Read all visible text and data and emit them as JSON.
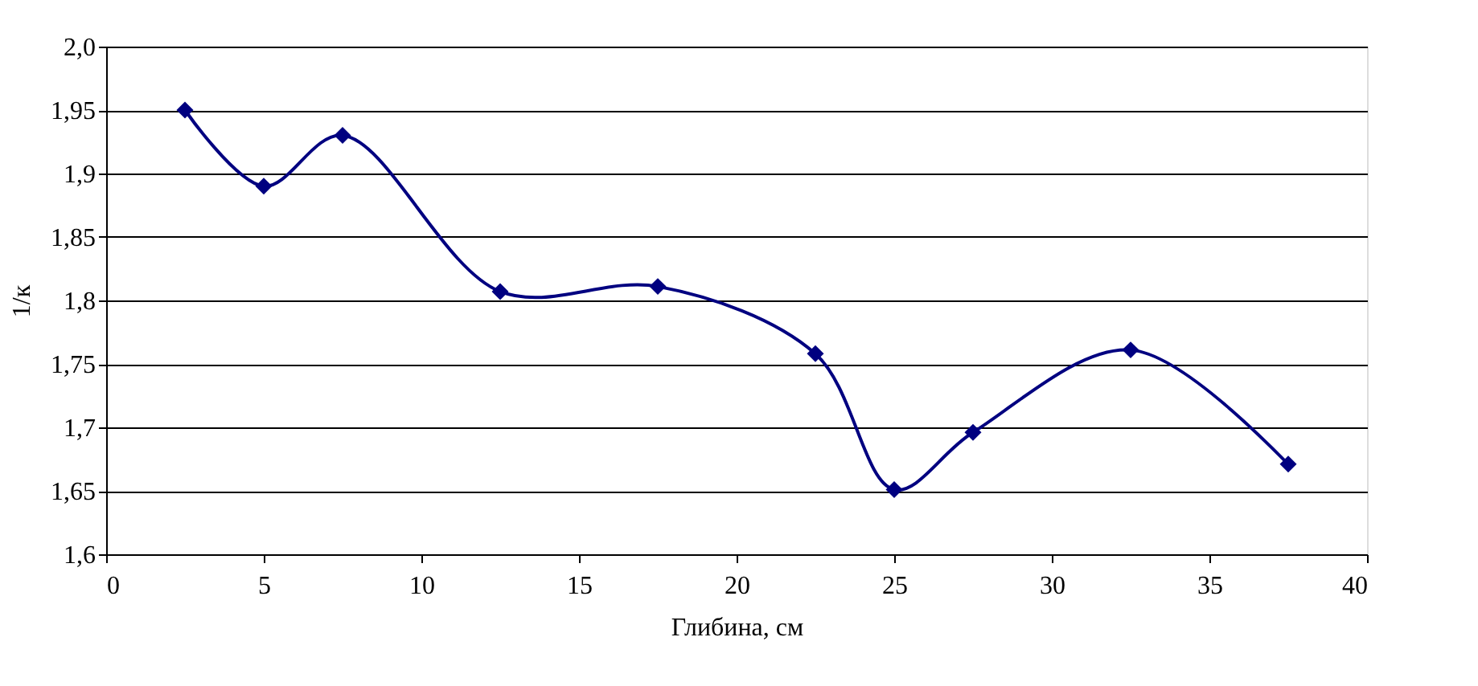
{
  "chart_data": {
    "type": "line",
    "xlabel": "Глибина, см",
    "ylabel": "1/к",
    "x": [
      2.5,
      5,
      7.5,
      12.5,
      17.5,
      22.5,
      25,
      27.5,
      32.5,
      37.5
    ],
    "series": [
      {
        "color": "#000080",
        "values": [
          1.95,
          1.89,
          1.93,
          1.807,
          1.811,
          1.758,
          1.651,
          1.696,
          1.761,
          1.671
        ]
      }
    ],
    "xlim": [
      0,
      40
    ],
    "xticks": [
      0,
      5,
      10,
      15,
      20,
      25,
      30,
      35,
      40
    ],
    "ylim": [
      1.6,
      2.0
    ],
    "yticks": [
      {
        "value": 1.6,
        "label": "1,6"
      },
      {
        "value": 1.65,
        "label": "1,65"
      },
      {
        "value": 1.7,
        "label": "1,7"
      },
      {
        "value": 1.75,
        "label": "1,75"
      },
      {
        "value": 1.8,
        "label": "1,8"
      },
      {
        "value": 1.85,
        "label": "1,85"
      },
      {
        "value": 1.9,
        "label": "1,9"
      },
      {
        "value": 1.95,
        "label": "1,95"
      },
      {
        "value": 2.0,
        "label": "2,0"
      }
    ],
    "grid": "y",
    "marker": "diamond",
    "line_style": "solid"
  }
}
